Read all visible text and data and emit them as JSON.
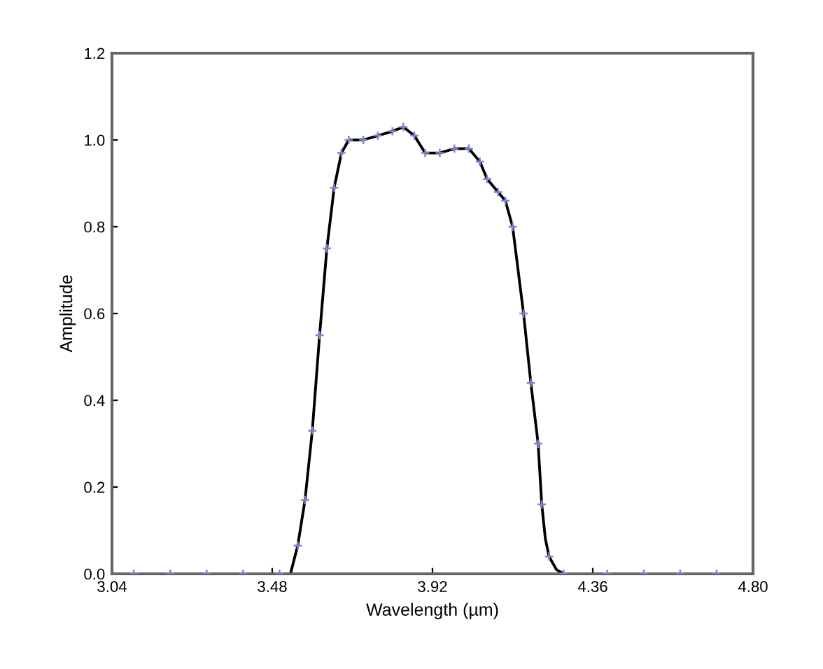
{
  "chart_data": {
    "type": "line",
    "xlabel": "Wavelength (µm)",
    "ylabel": "Amplitude",
    "xlim": [
      3.04,
      4.8
    ],
    "xticks": [
      3.04,
      3.48,
      3.92,
      4.36,
      {
        "value": 4.8,
        "label": "4.80"
      }
    ],
    "ylim": [
      0,
      1.2
    ],
    "yticks": [
      {
        "value": 0,
        "label": "0.0"
      },
      0.2,
      0.4,
      0.6,
      0.8,
      {
        "value": 1,
        "label": "1.0"
      },
      1.2
    ],
    "grid": false,
    "legend": false,
    "series": [
      {
        "color": "#000000",
        "marker": "none",
        "x": [
          3.04,
          3.3,
          3.5,
          3.53,
          3.55,
          3.57,
          3.59,
          3.61,
          3.63,
          3.65,
          3.67,
          3.69,
          3.73,
          3.77,
          3.81,
          3.84,
          3.87,
          3.9,
          3.94,
          3.98,
          4.02,
          4.05,
          4.07,
          4.1,
          4.12,
          4.14,
          4.17,
          4.19,
          4.21,
          4.22,
          4.23,
          4.24,
          4.26,
          4.28,
          4.5,
          4.8
        ],
        "values": [
          0,
          0,
          0,
          0,
          0.065,
          0.17,
          0.33,
          0.55,
          0.75,
          0.89,
          0.97,
          1.0,
          1.0,
          1.01,
          1.02,
          1.03,
          1.01,
          0.97,
          0.97,
          0.98,
          0.98,
          0.95,
          0.91,
          0.88,
          0.86,
          0.8,
          0.6,
          0.44,
          0.3,
          0.16,
          0.08,
          0.04,
          0.01,
          0,
          0,
          0
        ]
      },
      {
        "type": "scatter",
        "color": "#7a86d0",
        "marker": "cross",
        "x": [
          3.1,
          3.2,
          3.3,
          3.4,
          3.5,
          3.55,
          3.57,
          3.59,
          3.61,
          3.63,
          3.65,
          3.67,
          3.69,
          3.73,
          3.77,
          3.81,
          3.84,
          3.87,
          3.9,
          3.94,
          3.98,
          4.02,
          4.05,
          4.07,
          4.1,
          4.12,
          4.14,
          4.17,
          4.19,
          4.21,
          4.22,
          4.24,
          4.28,
          4.4,
          4.5,
          4.6,
          4.7
        ],
        "values": [
          0,
          0,
          0,
          0,
          0,
          0.065,
          0.17,
          0.33,
          0.55,
          0.75,
          0.89,
          0.97,
          1.0,
          1.0,
          1.01,
          1.02,
          1.03,
          1.01,
          0.97,
          0.97,
          0.98,
          0.98,
          0.95,
          0.91,
          0.88,
          0.86,
          0.8,
          0.6,
          0.44,
          0.3,
          0.16,
          0.04,
          0,
          0,
          0,
          0,
          0
        ]
      }
    ]
  }
}
